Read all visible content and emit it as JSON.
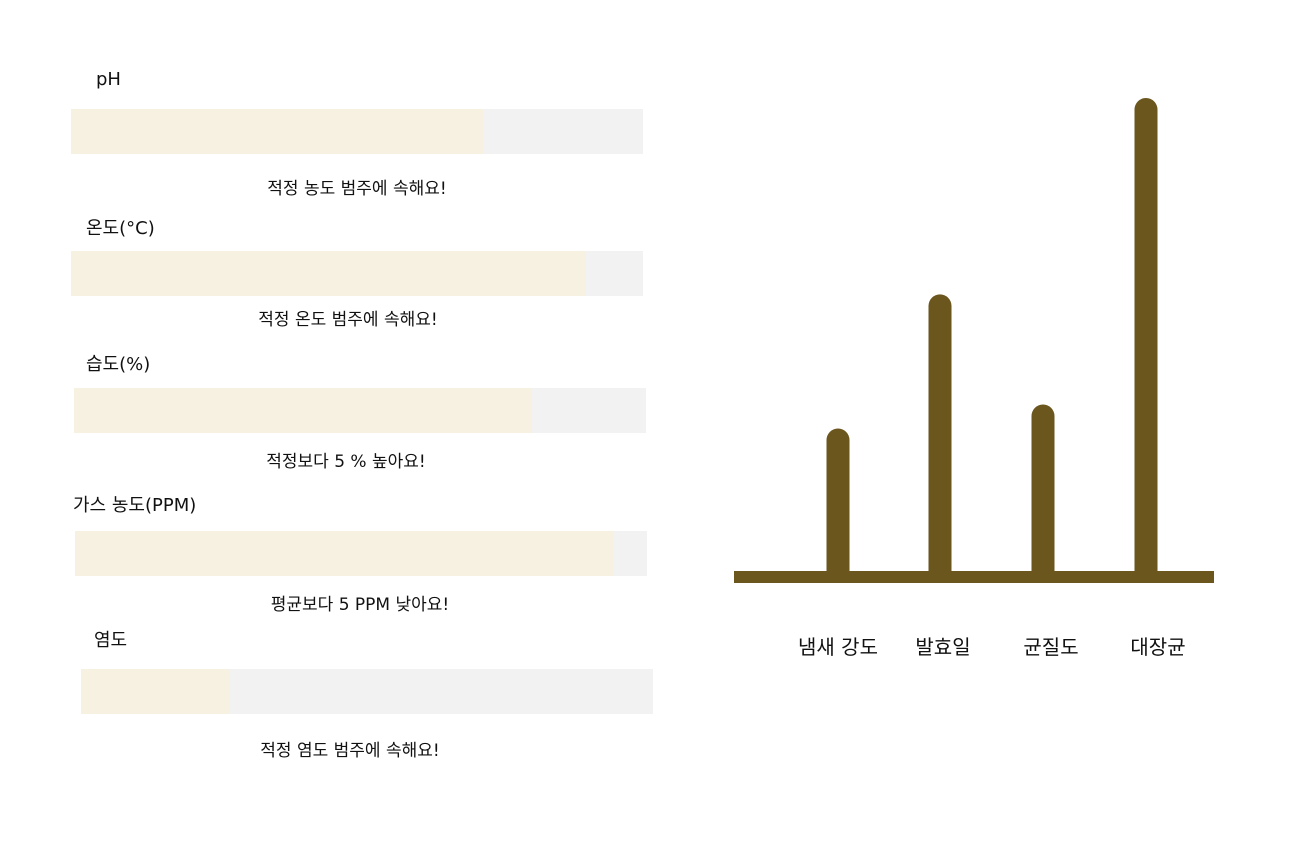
{
  "metrics": [
    {
      "name": "pH",
      "fill_percent": 72,
      "status": "적정 농도 범주에 속해요!"
    },
    {
      "name": "온도(°C)",
      "fill_percent": 90,
      "status": "적정 온도 범주에 속해요!"
    },
    {
      "name": "습도(%)",
      "fill_percent": 80,
      "status": "적정보다 5 % 높아요!"
    },
    {
      "name": "가스 농도(PPM)",
      "fill_percent": 94,
      "status": "평균보다 5 PPM 낮아요!"
    },
    {
      "name": "염도",
      "fill_percent": 26,
      "status": "적정 염도 범주에 속해요!"
    }
  ],
  "colors": {
    "bar_fill": "#f6f1e0",
    "bar_track": "#f2f2f2",
    "chart_bar": "#6b561e"
  },
  "chart_data": {
    "type": "bar",
    "categories": [
      "냄새 강도",
      "발효일",
      "균질도",
      "대장균"
    ],
    "values": [
      31,
      59,
      36,
      100
    ],
    "ylim": [
      0,
      100
    ],
    "grid": false,
    "legend": "none",
    "title": "",
    "xlabel": "",
    "ylabel": ""
  }
}
